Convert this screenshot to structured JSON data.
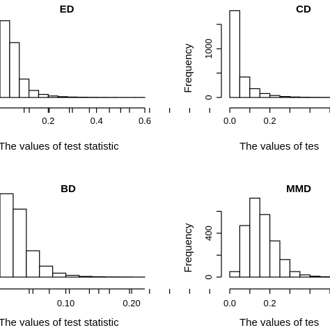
{
  "chart_data": [
    {
      "type": "bar",
      "title": "ED",
      "xlabel": "The values of test statistic",
      "ylabel": "",
      "xlim": [
        0.0,
        0.6
      ],
      "x_ticks": [
        0.2,
        0.4,
        0.6
      ],
      "x_tick_labels": [
        "0.2",
        "0.4",
        "0.6"
      ],
      "y_ticks": [],
      "y_tick_labels": [],
      "ylim": [
        0,
        2000
      ],
      "bin_edges": [
        0.0,
        0.04,
        0.08,
        0.12,
        0.16,
        0.2,
        0.24,
        0.28,
        0.32,
        0.36,
        0.4,
        0.44,
        0.48,
        0.52,
        0.56,
        0.6
      ],
      "values": [
        1750,
        1250,
        420,
        160,
        70,
        35,
        18,
        10,
        6,
        4,
        3,
        2,
        1,
        1,
        1
      ]
    },
    {
      "type": "bar",
      "title": "CD",
      "xlabel": "The values of tes",
      "ylabel": "Frequency",
      "xlim": [
        0.0,
        0.5
      ],
      "x_ticks": [
        0.0,
        0.2
      ],
      "x_tick_labels": [
        "0.0",
        "0.2"
      ],
      "y_ticks": [
        0,
        1000
      ],
      "y_tick_labels": [
        "0",
        "1000"
      ],
      "ylim": [
        0,
        1800
      ],
      "bin_edges": [
        0.0,
        0.05,
        0.1,
        0.15,
        0.2,
        0.25,
        0.3,
        0.35,
        0.4,
        0.45,
        0.5
      ],
      "values": [
        1780,
        420,
        180,
        80,
        40,
        20,
        10,
        5,
        3,
        2
      ]
    },
    {
      "type": "bar",
      "title": "BD",
      "xlabel": "The values of test statistic",
      "ylabel": "",
      "xlim": [
        0.0,
        0.22
      ],
      "x_ticks": [
        0.1,
        0.2
      ],
      "x_tick_labels": [
        "0.10",
        "0.20"
      ],
      "y_ticks": [],
      "y_tick_labels": [],
      "ylim": [
        0,
        2000
      ],
      "bin_edges": [
        0.0,
        0.02,
        0.04,
        0.06,
        0.08,
        0.1,
        0.12,
        0.14,
        0.16,
        0.18,
        0.2,
        0.22
      ],
      "values": [
        1900,
        1550,
        600,
        250,
        90,
        40,
        15,
        8,
        4,
        3,
        1
      ]
    },
    {
      "type": "bar",
      "title": "MMD",
      "xlabel": "The values of tes",
      "ylabel": "Frequency",
      "xlim": [
        0.0,
        0.5
      ],
      "x_ticks": [
        0.0,
        0.2
      ],
      "x_tick_labels": [
        "0.0",
        "0.2"
      ],
      "y_ticks": [
        0,
        400
      ],
      "y_tick_labels": [
        "0",
        "400"
      ],
      "ylim": [
        0,
        800
      ],
      "bin_edges": [
        0.0,
        0.05,
        0.1,
        0.15,
        0.2,
        0.25,
        0.3,
        0.35,
        0.4,
        0.45,
        0.5
      ],
      "values": [
        50,
        470,
        720,
        570,
        330,
        160,
        50,
        20,
        8,
        3
      ]
    }
  ]
}
